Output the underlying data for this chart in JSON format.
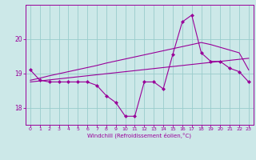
{
  "x": [
    0,
    1,
    2,
    3,
    4,
    5,
    6,
    7,
    8,
    9,
    10,
    11,
    12,
    13,
    14,
    15,
    16,
    17,
    18,
    19,
    20,
    21,
    22,
    23
  ],
  "windchill": [
    19.1,
    18.8,
    18.75,
    18.75,
    18.75,
    18.75,
    18.75,
    18.65,
    18.35,
    18.15,
    17.75,
    17.75,
    18.75,
    18.75,
    18.55,
    19.55,
    20.5,
    20.7,
    19.6,
    19.35,
    19.35,
    19.15,
    19.05,
    18.75
  ],
  "trend1": [
    18.75,
    18.78,
    18.81,
    18.84,
    18.87,
    18.9,
    18.93,
    18.96,
    18.99,
    19.02,
    19.05,
    19.08,
    19.11,
    19.14,
    19.17,
    19.2,
    19.23,
    19.26,
    19.29,
    19.32,
    19.35,
    19.38,
    19.41,
    19.44
  ],
  "trend2": [
    18.8,
    18.86,
    18.93,
    18.99,
    19.05,
    19.11,
    19.17,
    19.23,
    19.3,
    19.36,
    19.42,
    19.48,
    19.54,
    19.6,
    19.66,
    19.72,
    19.78,
    19.84,
    19.9,
    19.84,
    19.76,
    19.68,
    19.6,
    19.1
  ],
  "line_color": "#990099",
  "bg_color": "#cce8e8",
  "grid_color": "#99cccc",
  "xlabel": "Windchill (Refroidissement éolien,°C)",
  "ylim": [
    17.5,
    21.0
  ],
  "xlim": [
    -0.5,
    23.5
  ],
  "yticks": [
    18,
    19,
    20
  ],
  "xticks": [
    0,
    1,
    2,
    3,
    4,
    5,
    6,
    7,
    8,
    9,
    10,
    11,
    12,
    13,
    14,
    15,
    16,
    17,
    18,
    19,
    20,
    21,
    22,
    23
  ]
}
